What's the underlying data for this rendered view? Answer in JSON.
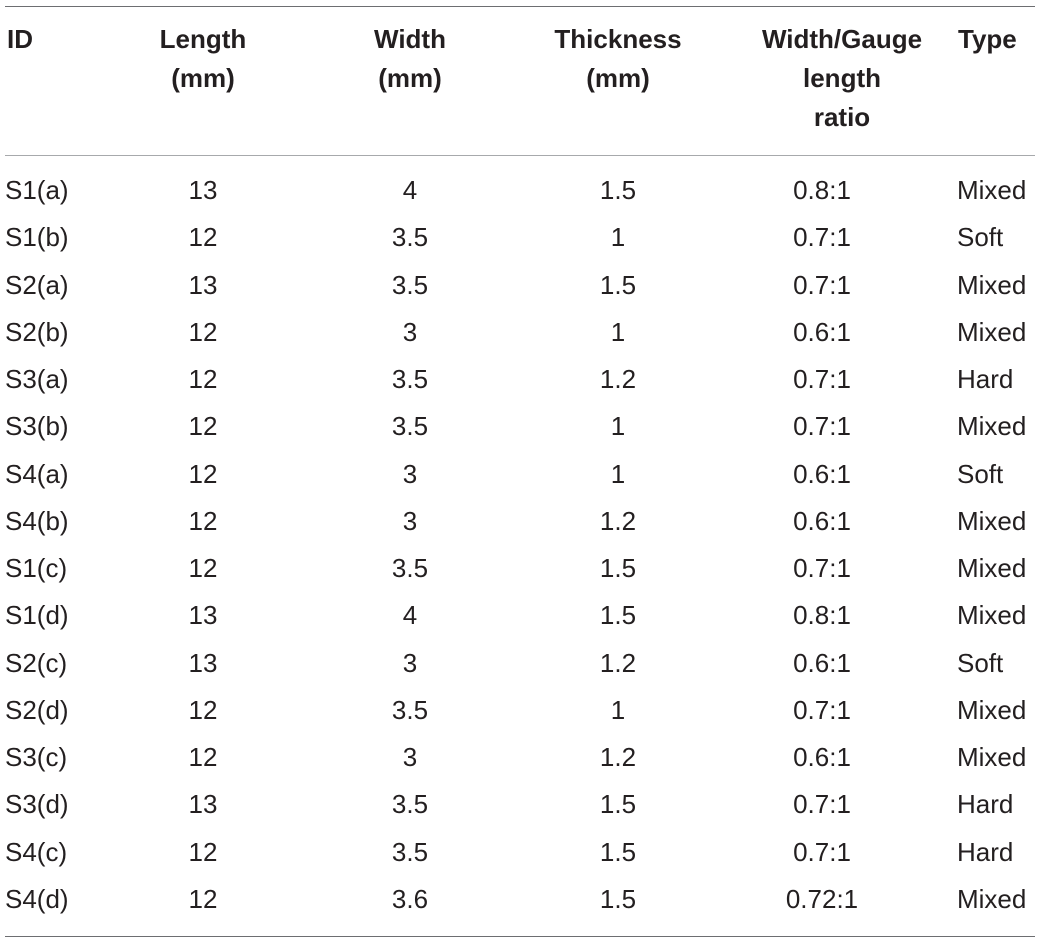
{
  "headers": {
    "id": "ID",
    "length": "Length\n(mm)",
    "width": "Width\n(mm)",
    "thickness": "Thickness\n(mm)",
    "ratio": "Width/Gauge\nlength\nratio",
    "type": "Type"
  },
  "rows": [
    {
      "id": "S1(a)",
      "length": "13",
      "width": "4",
      "thickness": "1.5",
      "ratio": "0.8:1",
      "type": "Mixed"
    },
    {
      "id": "S1(b)",
      "length": "12",
      "width": "3.5",
      "thickness": "1",
      "ratio": "0.7:1",
      "type": "Soft"
    },
    {
      "id": "S2(a)",
      "length": "13",
      "width": "3.5",
      "thickness": "1.5",
      "ratio": "0.7:1",
      "type": "Mixed"
    },
    {
      "id": "S2(b)",
      "length": "12",
      "width": "3",
      "thickness": "1",
      "ratio": "0.6:1",
      "type": "Mixed"
    },
    {
      "id": "S3(a)",
      "length": "12",
      "width": "3.5",
      "thickness": "1.2",
      "ratio": "0.7:1",
      "type": "Hard"
    },
    {
      "id": "S3(b)",
      "length": "12",
      "width": "3.5",
      "thickness": "1",
      "ratio": "0.7:1",
      "type": "Mixed"
    },
    {
      "id": "S4(a)",
      "length": "12",
      "width": "3",
      "thickness": "1",
      "ratio": "0.6:1",
      "type": "Soft"
    },
    {
      "id": "S4(b)",
      "length": "12",
      "width": "3",
      "thickness": "1.2",
      "ratio": "0.6:1",
      "type": "Mixed"
    },
    {
      "id": "S1(c)",
      "length": "12",
      "width": "3.5",
      "thickness": "1.5",
      "ratio": "0.7:1",
      "type": "Mixed"
    },
    {
      "id": "S1(d)",
      "length": "13",
      "width": "4",
      "thickness": "1.5",
      "ratio": "0.8:1",
      "type": "Mixed"
    },
    {
      "id": "S2(c)",
      "length": "13",
      "width": "3",
      "thickness": "1.2",
      "ratio": "0.6:1",
      "type": "Soft"
    },
    {
      "id": "S2(d)",
      "length": "12",
      "width": "3.5",
      "thickness": "1",
      "ratio": "0.7:1",
      "type": "Mixed"
    },
    {
      "id": "S3(c)",
      "length": "12",
      "width": "3",
      "thickness": "1.2",
      "ratio": "0.6:1",
      "type": "Mixed"
    },
    {
      "id": "S3(d)",
      "length": "13",
      "width": "3.5",
      "thickness": "1.5",
      "ratio": "0.7:1",
      "type": "Hard"
    },
    {
      "id": "S4(c)",
      "length": "12",
      "width": "3.5",
      "thickness": "1.5",
      "ratio": "0.7:1",
      "type": "Hard"
    },
    {
      "id": "S4(d)",
      "length": "12",
      "width": "3.6",
      "thickness": "1.5",
      "ratio": "0.72:1",
      "type": "Mixed"
    }
  ]
}
